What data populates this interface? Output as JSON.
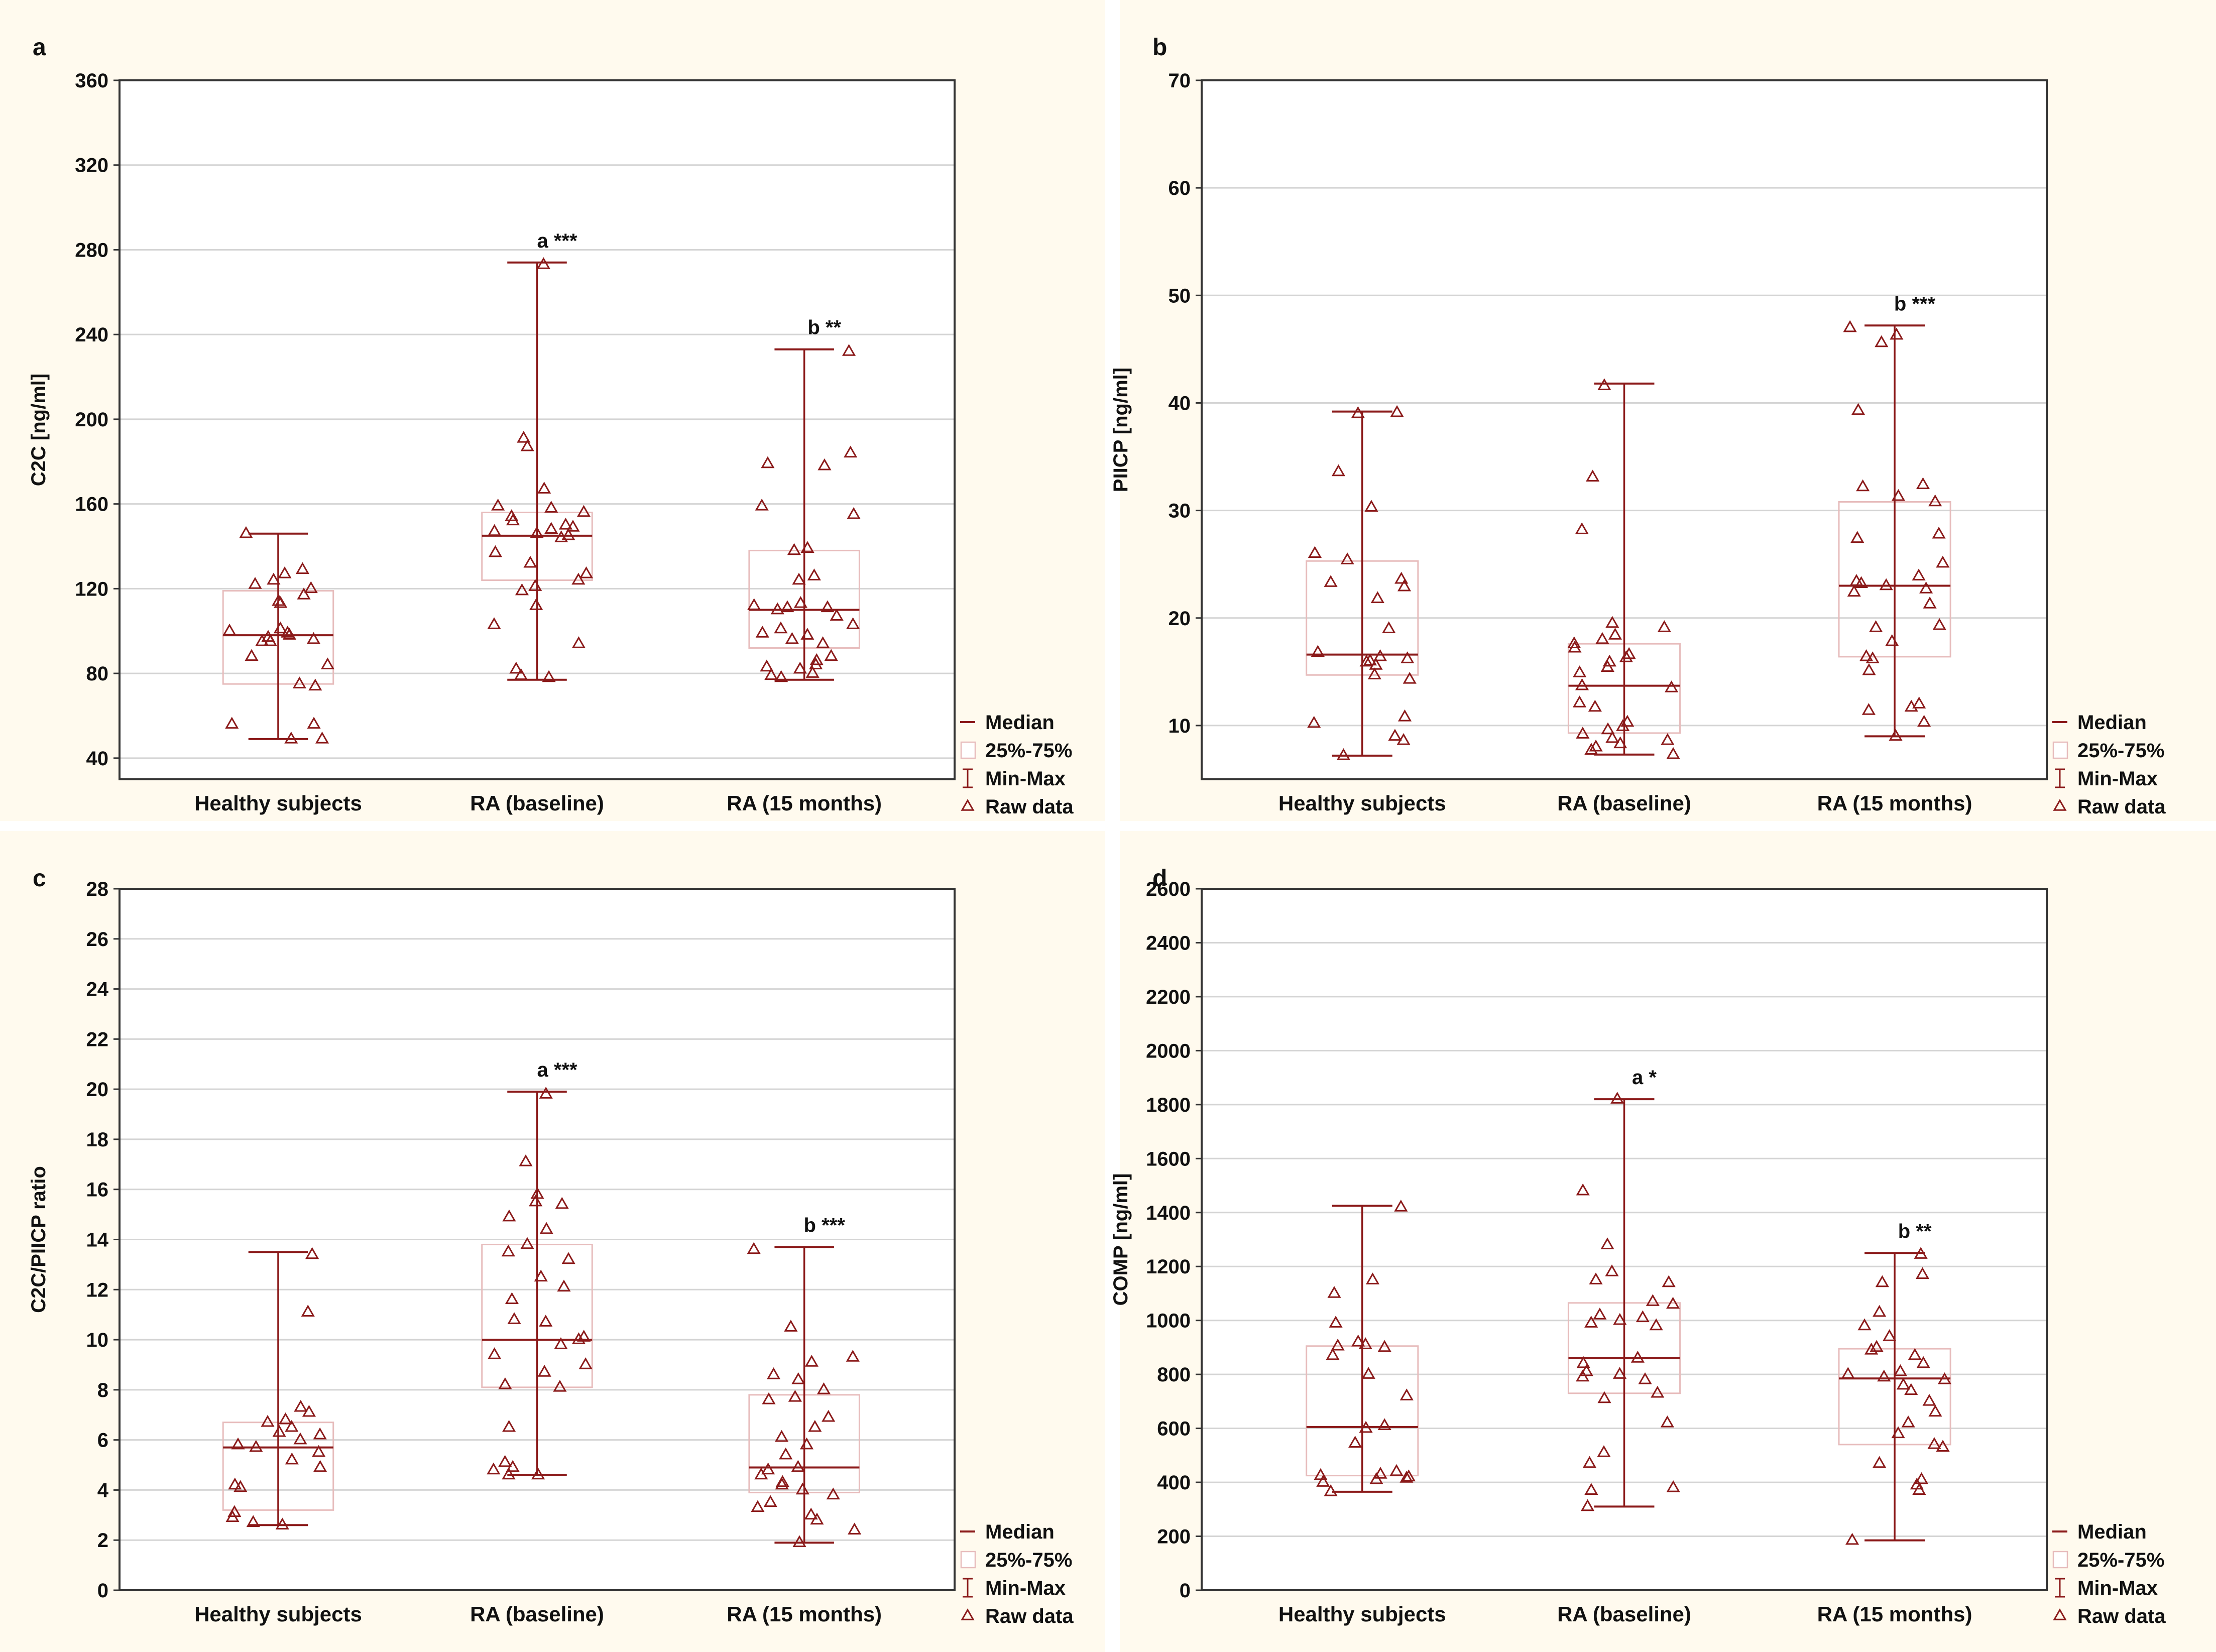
{
  "colors": {
    "panel_bg": "#fffaee",
    "plot_bg": "#ffffff",
    "mark": "#8b1a1a",
    "box_edge": "#e7bcbc",
    "grid": "#d4d4d4",
    "axis": "#333333",
    "text": "#111111"
  },
  "legend": {
    "median": "Median",
    "box": "25%-75%",
    "whisker": "Min-Max",
    "raw": "Raw data"
  },
  "chart_data": [
    {
      "panel_label": "a",
      "type": "boxplot",
      "ylabel": "C2C [ng/ml]",
      "ylim": [
        30,
        360
      ],
      "yticks": [
        40,
        80,
        120,
        160,
        200,
        240,
        280,
        320,
        360
      ],
      "categories": [
        "Healthy subjects",
        "RA (baseline)",
        "RA (15 months)"
      ],
      "groups": [
        {
          "min": 49,
          "q1": 75,
          "median": 98,
          "q3": 119,
          "max": 146,
          "annotation": "",
          "raw": [
            146,
            129,
            127,
            124,
            122,
            120,
            117,
            114,
            113,
            101,
            100,
            99,
            98,
            97,
            96,
            95,
            95,
            88,
            84,
            75,
            74,
            56,
            56,
            49,
            49
          ]
        },
        {
          "min": 77,
          "q1": 124,
          "median": 145,
          "q3": 156,
          "max": 274,
          "annotation": "a ***",
          "raw": [
            273,
            191,
            187,
            167,
            159,
            158,
            156,
            154,
            152,
            150,
            149,
            148,
            147,
            146,
            145,
            144,
            137,
            132,
            127,
            124,
            121,
            119,
            112,
            103,
            94,
            82,
            79,
            78
          ]
        },
        {
          "min": 77,
          "q1": 92,
          "median": 110,
          "q3": 138,
          "max": 233,
          "annotation": "b **",
          "raw": [
            232,
            184,
            179,
            178,
            159,
            155,
            139,
            138,
            126,
            124,
            113,
            112,
            111,
            111,
            110,
            107,
            103,
            101,
            99,
            98,
            96,
            94,
            88,
            86,
            84,
            83,
            82,
            80,
            79,
            78
          ]
        }
      ]
    },
    {
      "panel_label": "b",
      "type": "boxplot",
      "ylabel": "PIICP [ng/ml]",
      "ylim": [
        5,
        70
      ],
      "yticks": [
        10,
        20,
        30,
        40,
        50,
        60,
        70
      ],
      "categories": [
        "Healthy subjects",
        "RA (baseline)",
        "RA (15 months)"
      ],
      "groups": [
        {
          "min": 7.2,
          "q1": 14.7,
          "median": 16.6,
          "q3": 25.3,
          "max": 39.2,
          "annotation": "",
          "raw": [
            39.1,
            39.0,
            33.6,
            30.3,
            26.0,
            25.4,
            23.6,
            23.3,
            22.9,
            21.8,
            19.0,
            16.8,
            16.4,
            16.2,
            16.0,
            15.9,
            15.6,
            14.7,
            14.3,
            10.8,
            10.2,
            9.0,
            8.6,
            7.2
          ]
        },
        {
          "min": 7.3,
          "q1": 9.3,
          "median": 13.7,
          "q3": 17.6,
          "max": 41.8,
          "annotation": "",
          "raw": [
            41.6,
            33.1,
            28.2,
            19.5,
            19.1,
            18.4,
            18.0,
            17.6,
            17.2,
            16.6,
            16.3,
            15.9,
            15.4,
            14.9,
            13.7,
            13.5,
            12.1,
            11.7,
            10.3,
            9.9,
            9.6,
            9.2,
            8.8,
            8.6,
            8.3,
            8.0,
            7.7,
            7.3
          ]
        },
        {
          "min": 9.0,
          "q1": 16.4,
          "median": 23.0,
          "q3": 30.8,
          "max": 47.2,
          "annotation": "b ***",
          "raw": [
            47.0,
            46.3,
            45.6,
            39.3,
            32.4,
            32.2,
            31.3,
            30.8,
            27.8,
            27.4,
            25.1,
            23.9,
            23.4,
            23.2,
            23.0,
            22.7,
            22.4,
            21.3,
            19.3,
            19.1,
            17.8,
            16.4,
            16.2,
            15.1,
            12.0,
            11.7,
            11.4,
            10.3,
            9.0
          ]
        }
      ]
    },
    {
      "panel_label": "c",
      "type": "boxplot",
      "ylabel": "C2C/PIICP ratio",
      "ylim": [
        0,
        28
      ],
      "yticks": [
        0,
        2,
        4,
        6,
        8,
        10,
        12,
        14,
        16,
        18,
        20,
        22,
        24,
        26,
        28
      ],
      "categories": [
        "Healthy subjects",
        "RA (baseline)",
        "RA (15 months)"
      ],
      "groups": [
        {
          "min": 2.6,
          "q1": 3.2,
          "median": 5.7,
          "q3": 6.7,
          "max": 13.5,
          "annotation": "",
          "raw": [
            13.4,
            11.1,
            7.3,
            7.1,
            6.8,
            6.7,
            6.5,
            6.3,
            6.2,
            6.0,
            5.8,
            5.7,
            5.5,
            5.2,
            4.9,
            4.2,
            4.1,
            3.1,
            2.9,
            2.7,
            2.6
          ]
        },
        {
          "min": 4.6,
          "q1": 8.1,
          "median": 10.0,
          "q3": 13.8,
          "max": 19.9,
          "annotation": "a ***",
          "raw": [
            19.8,
            17.1,
            15.8,
            15.5,
            15.4,
            14.9,
            14.4,
            13.8,
            13.5,
            13.2,
            12.5,
            12.1,
            11.6,
            10.8,
            10.7,
            10.1,
            10.0,
            9.8,
            9.4,
            9.0,
            8.7,
            8.2,
            8.1,
            6.5,
            5.1,
            4.9,
            4.8,
            4.6,
            4.6
          ]
        },
        {
          "min": 1.9,
          "q1": 3.9,
          "median": 4.9,
          "q3": 7.8,
          "max": 13.7,
          "annotation": "b ***",
          "raw": [
            13.6,
            10.5,
            9.3,
            9.1,
            8.6,
            8.4,
            8.0,
            7.7,
            7.6,
            6.9,
            6.5,
            6.1,
            5.8,
            5.4,
            4.9,
            4.8,
            4.6,
            4.3,
            4.2,
            4.0,
            3.8,
            3.5,
            3.3,
            3.0,
            2.8,
            2.4,
            1.9
          ]
        }
      ]
    },
    {
      "panel_label": "d",
      "type": "boxplot",
      "ylabel": "COMP [ng/ml]",
      "ylim": [
        0,
        2600
      ],
      "yticks": [
        0,
        200,
        400,
        600,
        800,
        1000,
        1200,
        1400,
        1600,
        1800,
        2000,
        2200,
        2400,
        2600
      ],
      "categories": [
        "Healthy subjects",
        "RA (baseline)",
        "RA (15 months)"
      ],
      "groups": [
        {
          "min": 365,
          "q1": 425,
          "median": 605,
          "q3": 905,
          "max": 1425,
          "annotation": "",
          "raw": [
            1420,
            1150,
            1100,
            990,
            920,
            910,
            905,
            900,
            870,
            800,
            720,
            610,
            600,
            545,
            440,
            430,
            425,
            420,
            415,
            410,
            400,
            365
          ]
        },
        {
          "min": 310,
          "q1": 730,
          "median": 860,
          "q3": 1065,
          "max": 1820,
          "annotation": "a *",
          "raw": [
            1820,
            1480,
            1280,
            1180,
            1150,
            1140,
            1070,
            1060,
            1020,
            1010,
            1000,
            990,
            980,
            860,
            840,
            810,
            800,
            790,
            780,
            730,
            710,
            620,
            510,
            470,
            380,
            370,
            310
          ]
        },
        {
          "min": 185,
          "q1": 540,
          "median": 785,
          "q3": 895,
          "max": 1250,
          "annotation": "b **",
          "raw": [
            1245,
            1170,
            1140,
            1030,
            980,
            940,
            900,
            890,
            870,
            840,
            810,
            800,
            790,
            780,
            760,
            740,
            700,
            660,
            620,
            580,
            540,
            530,
            470,
            410,
            390,
            370,
            185
          ]
        }
      ]
    }
  ]
}
